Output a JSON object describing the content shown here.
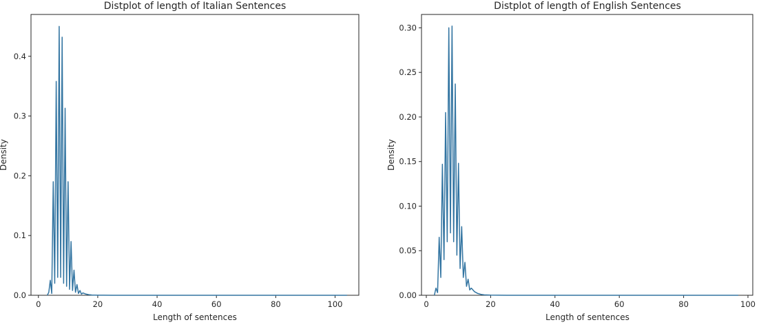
{
  "chart_data": [
    {
      "type": "line",
      "title": "Distplot of length of Italian Sentences",
      "xlabel": "Length of sentences",
      "ylabel": "Density",
      "xlim": [
        -2.5,
        108
      ],
      "ylim": [
        0,
        0.47
      ],
      "xticks": [
        0,
        20,
        40,
        60,
        80,
        100
      ],
      "xtick_labels": [
        "0",
        "20",
        "40",
        "60",
        "80",
        "100"
      ],
      "yticks": [
        0.0,
        0.1,
        0.2,
        0.3,
        0.4
      ],
      "ytick_labels": [
        "0.0",
        "0.1",
        "0.2",
        "0.3",
        "0.4"
      ],
      "grid": false,
      "color": "#3274a1",
      "series": [
        {
          "x": [
            3.0,
            3.5,
            4.0,
            4.5,
            5.0,
            5.5,
            6.0,
            6.5,
            7.0,
            7.5,
            8.0,
            8.5,
            9.0,
            9.5,
            10.0,
            10.5,
            11.0,
            11.5,
            12.0,
            12.5,
            13.0,
            13.5,
            14.0,
            14.5,
            15.0,
            16.0,
            17.0,
            18.0,
            20.0,
            22.0,
            25.0,
            30.0,
            40.0,
            50.0,
            60.0,
            70.0,
            80.0,
            90.0,
            100.0,
            104.0
          ],
          "y": [
            0.0,
            0.005,
            0.025,
            0.003,
            0.19,
            0.02,
            0.358,
            0.03,
            0.45,
            0.03,
            0.432,
            0.02,
            0.313,
            0.015,
            0.19,
            0.01,
            0.09,
            0.008,
            0.042,
            0.005,
            0.018,
            0.003,
            0.008,
            0.002,
            0.004,
            0.002,
            0.001,
            0.0005,
            0.0002,
            0.0001,
            0.0,
            0.0,
            0.0,
            0.0,
            0.0,
            0.0,
            0.0,
            0.0,
            0.0,
            0.0
          ]
        }
      ]
    },
    {
      "type": "line",
      "title": "Distplot of length of English Sentences",
      "xlabel": "Length of sentences",
      "ylabel": "Density",
      "xlim": [
        -1.5,
        101.5
      ],
      "ylim": [
        0,
        0.315
      ],
      "xticks": [
        0,
        20,
        40,
        60,
        80,
        100
      ],
      "xtick_labels": [
        "0",
        "20",
        "40",
        "60",
        "80",
        "100"
      ],
      "yticks": [
        0.0,
        0.05,
        0.1,
        0.15,
        0.2,
        0.25,
        0.3
      ],
      "ytick_labels": [
        "0.00",
        "0.05",
        "0.10",
        "0.15",
        "0.20",
        "0.25",
        "0.30"
      ],
      "grid": false,
      "color": "#3274a1",
      "series": [
        {
          "x": [
            2.5,
            3.0,
            3.5,
            4.0,
            4.5,
            5.0,
            5.5,
            6.0,
            6.5,
            7.0,
            7.5,
            8.0,
            8.5,
            9.0,
            9.5,
            10.0,
            10.5,
            11.0,
            11.5,
            12.0,
            12.5,
            13.0,
            13.5,
            14.0,
            15.0,
            16.0,
            17.0,
            18.0,
            20.0,
            25.0,
            30.0,
            40.0,
            50.0,
            60.0,
            70.0,
            80.0,
            90.0,
            97.0
          ],
          "y": [
            0.0,
            0.008,
            0.003,
            0.065,
            0.02,
            0.147,
            0.04,
            0.205,
            0.06,
            0.3,
            0.07,
            0.302,
            0.06,
            0.237,
            0.045,
            0.148,
            0.03,
            0.077,
            0.02,
            0.037,
            0.01,
            0.018,
            0.006,
            0.008,
            0.004,
            0.002,
            0.001,
            0.0005,
            0.0002,
            0.0,
            0.0,
            0.0,
            0.0,
            0.0,
            0.0,
            0.0,
            0.0,
            0.0
          ]
        }
      ]
    }
  ]
}
